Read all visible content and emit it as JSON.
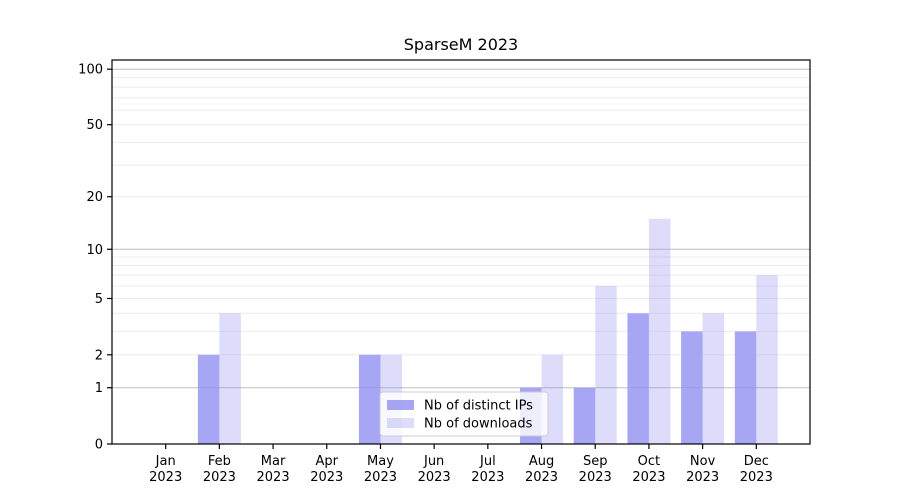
{
  "chart_data": {
    "type": "bar",
    "title": "SparseM 2023",
    "categories": [
      "Jan 2023",
      "Feb 2023",
      "Mar 2023",
      "Apr 2023",
      "May 2023",
      "Jun 2023",
      "Jul 2023",
      "Aug 2023",
      "Sep 2023",
      "Oct 2023",
      "Nov 2023",
      "Dec 2023"
    ],
    "series": [
      {
        "name": "Nb of distinct IPs",
        "color": "rgba(150,150,242,0.85)",
        "values": [
          0,
          2,
          0,
          0,
          2,
          0,
          0,
          1,
          1,
          4,
          3,
          3
        ]
      },
      {
        "name": "Nb of downloads",
        "color": "rgba(150,150,242,0.32)",
        "values": [
          0,
          4,
          0,
          0,
          2,
          0,
          0,
          2,
          6,
          15,
          4,
          7
        ]
      }
    ],
    "xlabel": "",
    "ylabel": "",
    "yscale": "log1p",
    "ylim": [
      0,
      112
    ],
    "y_ticks": [
      0,
      1,
      2,
      5,
      10,
      20,
      50,
      100
    ],
    "grid": {
      "major_values": [
        1,
        10,
        100
      ],
      "minor_values": [
        2,
        3,
        4,
        5,
        6,
        7,
        8,
        9,
        20,
        30,
        40,
        50,
        60,
        70,
        80,
        90
      ],
      "major_color": "#bdbdbd",
      "minor_color": "#ececec"
    },
    "legend": {
      "position": "lower center",
      "entries": [
        "Nb of distinct IPs",
        "Nb of downloads"
      ]
    },
    "axis_color": "#000000",
    "tick_label_color": "#000000"
  }
}
